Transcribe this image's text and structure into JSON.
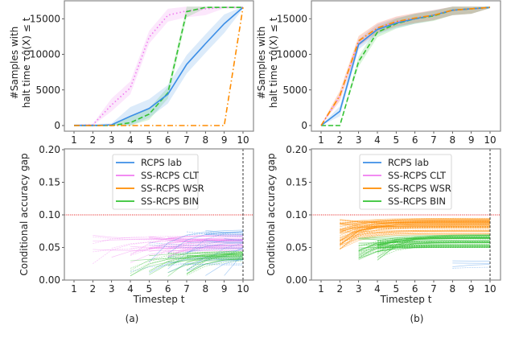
{
  "colors": {
    "RCPS lab": "#3c8ee6",
    "SS-RCPS CLT": "#f07cf0",
    "SS-RCPS WSR": "#ff8c00",
    "SS-RCPS BIN": "#33c233",
    "threshold": "#e83030",
    "horizon": "#222222"
  },
  "chart_data": [
    {
      "panel": "a",
      "type": "line",
      "ylabel": [
        "#Samples with",
        "halt time τq̂(X) ≤ t"
      ],
      "x": [
        1,
        2,
        3,
        4,
        5,
        6,
        7,
        8,
        9,
        10
      ],
      "xticks": [
        "1",
        "2",
        "3",
        "4",
        "5",
        "6",
        "7",
        "8",
        "9",
        "10"
      ],
      "yticks": [
        "0",
        "5000",
        "10000",
        "15000"
      ],
      "ytick_values": [
        0,
        5000,
        10000,
        15000
      ],
      "ylim": [
        -500,
        17200
      ],
      "series": [
        {
          "name": "SS-RCPS CLT",
          "style": "dotted",
          "values": [
            0,
            100,
            2900,
            5300,
            12400,
            15500,
            16100,
            16400,
            16600,
            16600
          ],
          "band": 900
        },
        {
          "name": "SS-RCPS BIN",
          "style": "dashed",
          "values": [
            0,
            0,
            0,
            400,
            1600,
            4600,
            16000,
            16600,
            16600,
            16600
          ],
          "band": 800
        },
        {
          "name": "RCPS lab",
          "style": "solid",
          "values": [
            0,
            0,
            100,
            1300,
            2400,
            4400,
            8600,
            11500,
            14300,
            16600
          ],
          "band": 1300
        },
        {
          "name": "SS-RCPS WSR",
          "style": "dashdot",
          "values": [
            0,
            0,
            0,
            0,
            0,
            0,
            0,
            0,
            0,
            16600
          ],
          "band": 0
        }
      ]
    },
    {
      "panel": "a",
      "type": "line",
      "xlabel": "Timestep t",
      "ylabel": "Conditional accuracy gap",
      "xticks": [
        "1",
        "2",
        "3",
        "4",
        "5",
        "6",
        "7",
        "8",
        "9",
        "10"
      ],
      "yticks": [
        "0.00",
        "0.05",
        "0.10",
        "0.15",
        "0.20"
      ],
      "ytick_values": [
        0,
        0.05,
        0.1,
        0.15,
        0.2
      ],
      "ylim": [
        0,
        0.2
      ],
      "xlim": [
        0.5,
        10.5
      ],
      "threshold": 0.1,
      "horizon": 10,
      "legend": [
        "RCPS lab",
        "SS-RCPS CLT",
        "SS-RCPS WSR",
        "SS-RCPS BIN"
      ],
      "legend_position": "top-center",
      "line_groups": [
        {
          "name": "SS-RCPS CLT",
          "t_start": [
            2,
            3,
            4,
            5,
            6
          ],
          "start_range": [
            0.025,
            0.07
          ],
          "end_range": [
            0.045,
            0.07
          ],
          "count": 40
        },
        {
          "name": "RCPS lab",
          "t_start": [
            4,
            5,
            6,
            7,
            8,
            9
          ],
          "start_range": [
            0.005,
            0.078
          ],
          "end_range": [
            0.02,
            0.078
          ],
          "count": 30
        },
        {
          "name": "SS-RCPS BIN",
          "t_start": [
            4,
            5,
            6,
            7
          ],
          "start_range": [
            0.005,
            0.045
          ],
          "end_range": [
            0.03,
            0.045
          ],
          "count": 30
        }
      ]
    },
    {
      "panel": "b",
      "type": "line",
      "ylabel": [
        "#Samples with",
        "halt time τq̂(X) ≤ t"
      ],
      "x": [
        1,
        2,
        3,
        4,
        5,
        6,
        7,
        8,
        9,
        10
      ],
      "xticks": [
        "1",
        "2",
        "3",
        "4",
        "5",
        "6",
        "7",
        "8",
        "9",
        "10"
      ],
      "yticks": [
        "0",
        "5000",
        "10000",
        "15000"
      ],
      "ytick_values": [
        0,
        5000,
        10000,
        15000
      ],
      "ylim": [
        -500,
        17200
      ],
      "series": [
        {
          "name": "SS-RCPS CLT",
          "style": "dotted",
          "values": [
            0,
            4100,
            11800,
            13700,
            14600,
            15100,
            15500,
            16200,
            16400,
            16600
          ],
          "band": 700
        },
        {
          "name": "SS-RCPS BIN",
          "style": "dashed",
          "values": [
            0,
            0,
            9000,
            13100,
            14300,
            15000,
            15400,
            16200,
            16400,
            16600
          ],
          "band": 700
        },
        {
          "name": "RCPS lab",
          "style": "solid",
          "values": [
            0,
            2000,
            11400,
            13500,
            14400,
            15000,
            15500,
            16200,
            16400,
            16600
          ],
          "band": 700
        },
        {
          "name": "SS-RCPS WSR",
          "style": "dashdot",
          "values": [
            0,
            4200,
            11900,
            13700,
            14600,
            15100,
            15500,
            16200,
            16400,
            16600
          ],
          "band": 700
        }
      ]
    },
    {
      "panel": "b",
      "type": "line",
      "xlabel": "Timestep t",
      "ylabel": "Conditional accuracy gap",
      "xticks": [
        "1",
        "2",
        "3",
        "4",
        "5",
        "6",
        "7",
        "8",
        "9",
        "10"
      ],
      "yticks": [
        "0.00",
        "0.05",
        "0.10",
        "0.15",
        "0.20"
      ],
      "ytick_values": [
        0,
        0.05,
        0.1,
        0.15,
        0.2
      ],
      "ylim": [
        0,
        0.2
      ],
      "xlim": [
        0.5,
        10.5
      ],
      "threshold": 0.1,
      "horizon": 10,
      "legend": [
        "RCPS lab",
        "SS-RCPS CLT",
        "SS-RCPS WSR",
        "SS-RCPS BIN"
      ],
      "legend_position": "top-center",
      "line_groups": [
        {
          "name": "SS-RCPS WSR",
          "t_start": [
            2
          ],
          "start_range": [
            0.045,
            0.095
          ],
          "end_range": [
            0.07,
            0.095
          ],
          "count": 60
        },
        {
          "name": "SS-RCPS BIN",
          "t_start": [
            3,
            4
          ],
          "start_range": [
            0.03,
            0.065
          ],
          "end_range": [
            0.05,
            0.07
          ],
          "count": 60
        },
        {
          "name": "RCPS lab",
          "t_start": [
            8
          ],
          "start_range": [
            0.015,
            0.03
          ],
          "end_range": [
            0.02,
            0.03
          ],
          "count": 4
        }
      ]
    }
  ],
  "panel_labels": [
    "(a)",
    "(b)"
  ]
}
